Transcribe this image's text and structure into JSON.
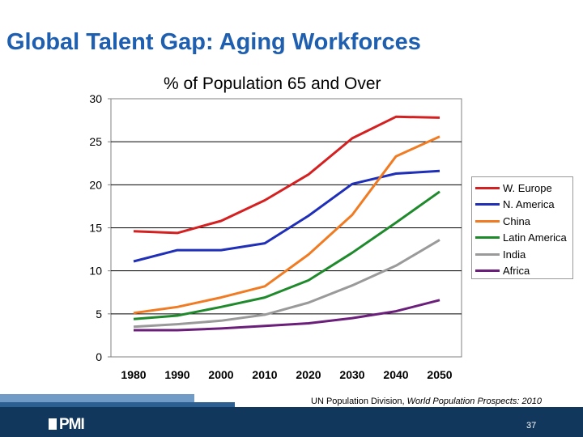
{
  "slide": {
    "title": "Global Talent Gap: Aging Workforces",
    "source_prefix": "UN Population Division, ",
    "source_title": "World Population Prospects: 2010",
    "page_number": "37",
    "logo_text": "PMI"
  },
  "chart_data": {
    "type": "line",
    "title": "% of Population 65 and Over",
    "xlabel": "",
    "ylabel": "",
    "x": [
      1980,
      1990,
      2000,
      2010,
      2020,
      2030,
      2040,
      2050
    ],
    "ylim": [
      0,
      30
    ],
    "yticks": [
      0,
      5,
      10,
      15,
      20,
      25,
      30
    ],
    "grid": true,
    "legend_position": "right",
    "series": [
      {
        "name": "W. Europe",
        "color": "#d42020",
        "values": [
          14.6,
          14.4,
          15.8,
          18.2,
          21.2,
          25.4,
          27.9,
          27.8
        ]
      },
      {
        "name": "N. America",
        "color": "#1f2fb8",
        "values": [
          11.1,
          12.4,
          12.4,
          13.2,
          16.4,
          20.1,
          21.3,
          21.6
        ]
      },
      {
        "name": "China",
        "color": "#f07b22",
        "values": [
          5.1,
          5.8,
          6.9,
          8.2,
          11.9,
          16.5,
          23.3,
          25.6
        ]
      },
      {
        "name": "Latin America",
        "color": "#1f8a2c",
        "values": [
          4.4,
          4.8,
          5.8,
          6.9,
          8.9,
          12.1,
          15.6,
          19.2
        ]
      },
      {
        "name": "India",
        "color": "#9a9a9a",
        "values": [
          3.5,
          3.8,
          4.2,
          4.9,
          6.3,
          8.3,
          10.6,
          13.6
        ]
      },
      {
        "name": "Africa",
        "color": "#6b1f7a",
        "values": [
          3.1,
          3.1,
          3.3,
          3.6,
          3.9,
          4.5,
          5.3,
          6.6
        ]
      }
    ]
  }
}
